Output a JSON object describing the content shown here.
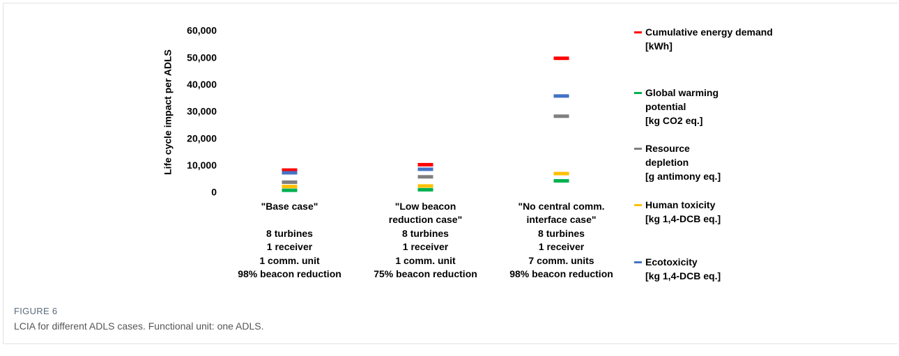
{
  "chart_data": {
    "type": "dot",
    "ylabel": "Life cycle impact per ADLS",
    "categories": [
      "\"Base case\"\n\n8 turbines\n1 receiver\n1 comm. unit\n98% beacon reduction",
      "\"Low beacon\nreduction case\"\n8 turbines\n1 receiver\n1 comm. unit\n75% beacon reduction",
      "\"No central comm.\ninterface case\"\n8 turbines\n1 receiver\n7 comm. units\n98% beacon reduction"
    ],
    "series": [
      {
        "name": "Cumulative energy demand\n[kWh]",
        "color": "#ff0000",
        "values": [
          8500,
          10500,
          50000
        ]
      },
      {
        "name": "Global warming\npotential\n[kg CO2 eq.]",
        "color": "#00b050",
        "values": [
          1000,
          1200,
          4500
        ]
      },
      {
        "name": "Resource\ndepletion\n[g antimony eq.]",
        "color": "#7f7f7f",
        "values": [
          4000,
          6000,
          28500
        ]
      },
      {
        "name": "Human toxicity\n[kg 1,4-DCB eq.]",
        "color": "#ffc000",
        "values": [
          2400,
          2600,
          7200
        ]
      },
      {
        "name": "Ecotoxicity\n[kg 1,4-DCB eq.]",
        "color": "#4472c4",
        "values": [
          7500,
          8800,
          36000
        ]
      }
    ],
    "ylim": [
      0,
      60000
    ],
    "yticks": [
      0,
      {
        "value": 10000,
        "label": "10,000"
      },
      {
        "value": 20000,
        "label": "20,000"
      },
      {
        "value": 30000,
        "label": "30,000"
      },
      {
        "value": 40000,
        "label": "40,000"
      },
      {
        "value": 50000,
        "label": "50,000"
      },
      {
        "value": 60000,
        "label": "60,000"
      }
    ],
    "grid": false,
    "legend": "right"
  },
  "figure": {
    "label": "FIGURE 6",
    "caption": "LCIA for different ADLS cases. Functional unit: one ADLS."
  }
}
